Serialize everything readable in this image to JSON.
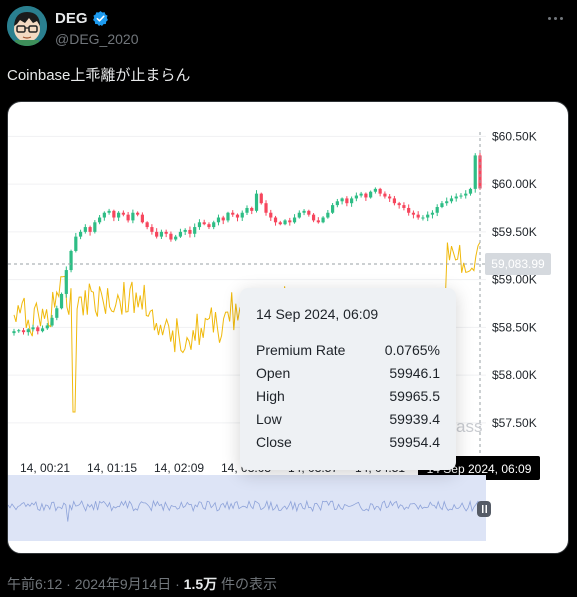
{
  "author": {
    "display_name": "DEG",
    "handle": "@DEG_2020",
    "verified_icon": "verified-badge-icon",
    "avatar_icon": "avatar-cartoon-glasses-icon"
  },
  "tweet": {
    "text": "Coinbase上乖離が止まらん"
  },
  "media": {
    "watermark": "ass",
    "tooltip": {
      "title": "14 Sep 2024, 06:09",
      "rows": [
        {
          "label": "Premium Rate",
          "value": "0.0765%"
        },
        {
          "label": "Open",
          "value": "59946.1"
        },
        {
          "label": "High",
          "value": "59965.5"
        },
        {
          "label": "Low",
          "value": "59939.4"
        },
        {
          "label": "Close",
          "value": "59954.4"
        }
      ]
    },
    "price_marker": "59,083.99",
    "time_marker": "14 Sep 2024, 06:09",
    "scroll_handle_icon": "pause-bars-icon"
  },
  "chart_data": {
    "type": "line",
    "y_axis_labels": [
      "$60.50K",
      "$60.00K",
      "$59.50K",
      "$59.00K",
      "$58.50K",
      "$58.00K",
      "$57.50K"
    ],
    "y_axis_values": [
      60500,
      60000,
      59500,
      59000,
      58500,
      58000,
      57500
    ],
    "x_axis_labels": [
      "14, 00:21",
      "14, 01:15",
      "14, 02:09",
      "14, 03:03",
      "14, 03:57",
      "14, 04:51"
    ],
    "ylim": [
      57300,
      60650
    ],
    "series": [
      {
        "kind": "candlestick",
        "color_up": "#2ebd85",
        "color_down": "#f6465d",
        "close": [
          58460,
          58470,
          58450,
          58480,
          58500,
          58460,
          58490,
          58520,
          58600,
          58700,
          58850,
          59100,
          59300,
          59450,
          59500,
          59550,
          59500,
          59600,
          59650,
          59700,
          59720,
          59650,
          59700,
          59680,
          59620,
          59700,
          59680,
          59600,
          59550,
          59500,
          59450,
          59500,
          59480,
          59420,
          59450,
          59500,
          59520,
          59480,
          59550,
          59600,
          59580,
          59550,
          59600,
          59650,
          59620,
          59700,
          59680,
          59650,
          59700,
          59750,
          59720,
          59900,
          59800,
          59700,
          59650,
          59600,
          59580,
          59620,
          59600,
          59650,
          59700,
          59720,
          59680,
          59620,
          59600,
          59650,
          59700,
          59780,
          59820,
          59850,
          59800,
          59850,
          59880,
          59900,
          59860,
          59920,
          59950,
          59900,
          59870,
          59850,
          59800,
          59780,
          59750,
          59700,
          59680,
          59650,
          59650,
          59680,
          59700,
          59760,
          59800,
          59820,
          59850,
          59870,
          59880,
          59900,
          59950,
          60300,
          59954
        ]
      },
      {
        "kind": "premium_rate",
        "name": "Premium Rate",
        "color": "#f0b90b",
        "unit": "%"
      }
    ]
  },
  "meta": {
    "time": "午前6:12",
    "sep1": " · ",
    "date": "2024年9月14日",
    "sep2": " · ",
    "views_count": "1.5万",
    "views_label": " 件の表示"
  }
}
